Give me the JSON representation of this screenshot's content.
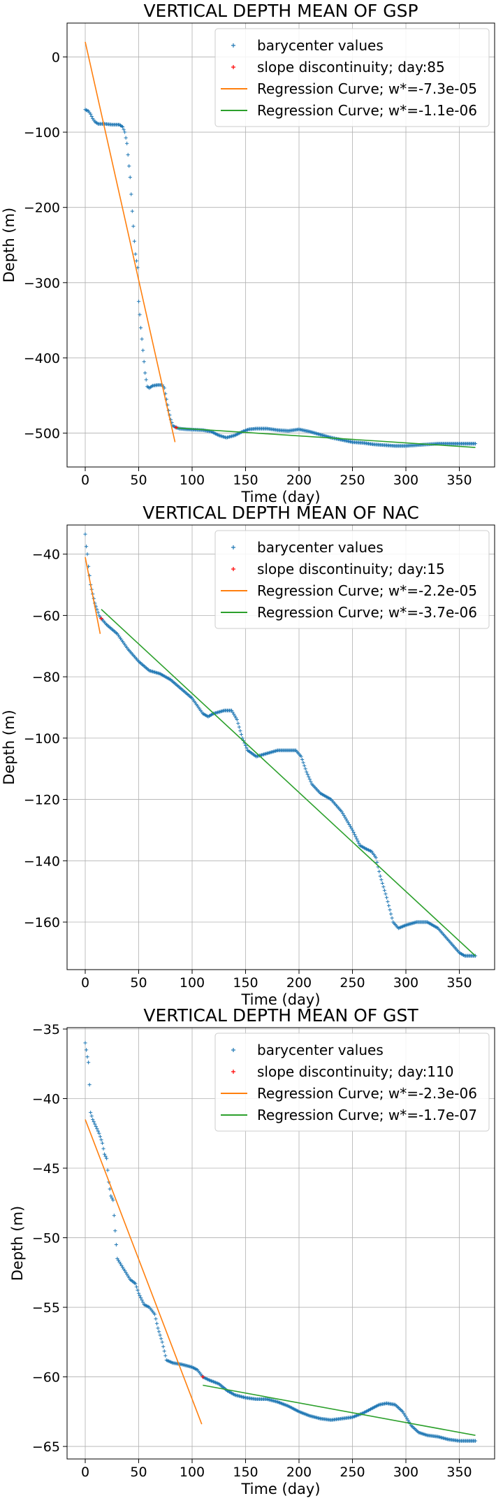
{
  "chart_data": [
    {
      "type": "scatter",
      "title": "VERTICAL DEPTH MEAN OF GSP",
      "xlabel": "Time (day)",
      "ylabel": "Depth (m)",
      "xlim": [
        -17,
        383
      ],
      "ylim": [
        -545,
        45
      ],
      "xticks": [
        0,
        50,
        100,
        150,
        200,
        250,
        300,
        350
      ],
      "yticks": [
        0,
        -100,
        -200,
        -300,
        -400,
        -500
      ],
      "grid": true,
      "legend_position": "top-right",
      "legend": [
        "barycenter values",
        "slope discontinuity; day:85",
        "Regression Curve; w*=-7.3e-05",
        "Regression Curve; w*=-1.1e-06"
      ],
      "colors": {
        "scatter": "#1f77b4",
        "discontinuity": "#ff0000",
        "reg1": "#ff7f0e",
        "reg2": "#2ca02c"
      },
      "discontinuity_day": 85,
      "regression_lines": [
        {
          "x": [
            0,
            84
          ],
          "y": [
            20,
            -512
          ]
        },
        {
          "x": [
            85,
            365
          ],
          "y": [
            -493,
            -519
          ]
        }
      ],
      "profile": [
        [
          0,
          -70
        ],
        [
          3,
          -72
        ],
        [
          5,
          -76
        ],
        [
          7,
          -82
        ],
        [
          9,
          -86
        ],
        [
          12,
          -89
        ],
        [
          18,
          -89
        ],
        [
          25,
          -90
        ],
        [
          32,
          -90
        ],
        [
          35,
          -93
        ],
        [
          37,
          -100
        ],
        [
          39,
          -115
        ],
        [
          40,
          -130
        ],
        [
          42,
          -160
        ],
        [
          44,
          -205
        ],
        [
          46,
          -245
        ],
        [
          47,
          -262
        ],
        [
          49,
          -280
        ],
        [
          50,
          -325
        ],
        [
          52,
          -360
        ],
        [
          54,
          -390
        ],
        [
          56,
          -420
        ],
        [
          58,
          -438
        ],
        [
          60,
          -440
        ],
        [
          63,
          -437
        ],
        [
          68,
          -436
        ],
        [
          72,
          -436
        ],
        [
          74,
          -440
        ],
        [
          76,
          -455
        ],
        [
          78,
          -470
        ],
        [
          80,
          -482
        ],
        [
          82,
          -490
        ],
        [
          84,
          -492
        ],
        [
          88,
          -494
        ],
        [
          95,
          -495
        ],
        [
          110,
          -496
        ],
        [
          118,
          -498
        ],
        [
          125,
          -503
        ],
        [
          132,
          -506
        ],
        [
          140,
          -503
        ],
        [
          147,
          -498
        ],
        [
          153,
          -495
        ],
        [
          160,
          -494
        ],
        [
          170,
          -494
        ],
        [
          180,
          -496
        ],
        [
          190,
          -497
        ],
        [
          200,
          -495
        ],
        [
          210,
          -498
        ],
        [
          220,
          -502
        ],
        [
          230,
          -506
        ],
        [
          240,
          -509
        ],
        [
          250,
          -512
        ],
        [
          260,
          -513
        ],
        [
          270,
          -515
        ],
        [
          280,
          -516
        ],
        [
          290,
          -517
        ],
        [
          300,
          -517
        ],
        [
          310,
          -516
        ],
        [
          320,
          -515
        ],
        [
          330,
          -514
        ],
        [
          340,
          -514
        ],
        [
          350,
          -514
        ],
        [
          365,
          -514
        ]
      ]
    },
    {
      "type": "scatter",
      "title": "VERTICAL DEPTH MEAN OF NAC",
      "xlabel": "Time (day)",
      "ylabel": "Depth (m)",
      "xlim": [
        -17,
        383
      ],
      "ylim": [
        -175.5,
        -30.5
      ],
      "xticks": [
        0,
        50,
        100,
        150,
        200,
        250,
        300,
        350
      ],
      "yticks": [
        -40,
        -60,
        -80,
        -100,
        -120,
        -140,
        -160
      ],
      "grid": true,
      "legend_position": "top-right",
      "legend": [
        "barycenter values",
        "slope discontinuity; day:15",
        "Regression Curve; w*=-2.2e-05",
        "Regression Curve; w*=-3.7e-06"
      ],
      "colors": {
        "scatter": "#1f77b4",
        "discontinuity": "#ff0000",
        "reg1": "#ff7f0e",
        "reg2": "#2ca02c"
      },
      "discontinuity_day": 15,
      "regression_lines": [
        {
          "x": [
            0,
            14
          ],
          "y": [
            -41,
            -66
          ]
        },
        {
          "x": [
            15,
            365
          ],
          "y": [
            -58,
            -171
          ]
        }
      ],
      "profile": [
        [
          0,
          -33.5
        ],
        [
          1,
          -37.5
        ],
        [
          2,
          -40
        ],
        [
          3,
          -44
        ],
        [
          4,
          -47
        ],
        [
          5,
          -50
        ],
        [
          7,
          -53
        ],
        [
          9,
          -56
        ],
        [
          11,
          -58
        ],
        [
          13,
          -60
        ],
        [
          15,
          -61
        ],
        [
          20,
          -63
        ],
        [
          30,
          -66
        ],
        [
          40,
          -71
        ],
        [
          50,
          -75
        ],
        [
          60,
          -78
        ],
        [
          70,
          -79
        ],
        [
          80,
          -81
        ],
        [
          90,
          -84
        ],
        [
          100,
          -87
        ],
        [
          110,
          -92
        ],
        [
          115,
          -93
        ],
        [
          120,
          -92
        ],
        [
          130,
          -91
        ],
        [
          137,
          -91
        ],
        [
          142,
          -94
        ],
        [
          147,
          -100
        ],
        [
          152,
          -104
        ],
        [
          160,
          -106
        ],
        [
          170,
          -105
        ],
        [
          180,
          -104
        ],
        [
          190,
          -104
        ],
        [
          197,
          -104
        ],
        [
          202,
          -106
        ],
        [
          207,
          -111
        ],
        [
          212,
          -115
        ],
        [
          220,
          -118
        ],
        [
          230,
          -120
        ],
        [
          240,
          -124
        ],
        [
          250,
          -130
        ],
        [
          257,
          -135
        ],
        [
          262,
          -136
        ],
        [
          268,
          -137
        ],
        [
          272,
          -139
        ],
        [
          276,
          -145
        ],
        [
          282,
          -152
        ],
        [
          288,
          -160
        ],
        [
          293,
          -162
        ],
        [
          300,
          -161
        ],
        [
          310,
          -160
        ],
        [
          320,
          -160
        ],
        [
          330,
          -162
        ],
        [
          340,
          -166
        ],
        [
          350,
          -170
        ],
        [
          355,
          -171
        ],
        [
          365,
          -171
        ]
      ]
    },
    {
      "type": "scatter",
      "title": "VERTICAL DEPTH MEAN OF GST",
      "xlabel": "Time (day)",
      "ylabel": "Depth (m)",
      "xlim": [
        -17,
        383
      ],
      "ylim": [
        -65.9,
        -34.9
      ],
      "xticks": [
        0,
        50,
        100,
        150,
        200,
        250,
        300,
        350
      ],
      "yticks": [
        -35,
        -40,
        -45,
        -50,
        -55,
        -60,
        -65
      ],
      "grid": true,
      "legend_position": "top-right",
      "legend": [
        "barycenter values",
        "slope discontinuity; day:110",
        "Regression Curve; w*=-2.3e-06",
        "Regression Curve; w*=-1.7e-07"
      ],
      "colors": {
        "scatter": "#1f77b4",
        "discontinuity": "#ff0000",
        "reg1": "#ff7f0e",
        "reg2": "#2ca02c"
      },
      "discontinuity_day": 110,
      "regression_lines": [
        {
          "x": [
            0,
            109
          ],
          "y": [
            -41.5,
            -63.4
          ]
        },
        {
          "x": [
            110,
            365
          ],
          "y": [
            -60.6,
            -64.2
          ]
        }
      ],
      "profile": [
        [
          0,
          -36
        ],
        [
          2,
          -37
        ],
        [
          3,
          -37.4
        ],
        [
          4,
          -39
        ],
        [
          5,
          -41
        ],
        [
          7,
          -41.5
        ],
        [
          10,
          -42
        ],
        [
          13,
          -42.5
        ],
        [
          16,
          -43.2
        ],
        [
          18,
          -44
        ],
        [
          20,
          -44.3
        ],
        [
          22,
          -46
        ],
        [
          24,
          -47
        ],
        [
          26,
          -47.3
        ],
        [
          28,
          -49.5
        ],
        [
          30,
          -51.5
        ],
        [
          34,
          -52
        ],
        [
          38,
          -52.5
        ],
        [
          42,
          -53
        ],
        [
          47,
          -53.3
        ],
        [
          50,
          -54
        ],
        [
          55,
          -54.8
        ],
        [
          60,
          -55
        ],
        [
          65,
          -55.5
        ],
        [
          68,
          -56.5
        ],
        [
          72,
          -57.5
        ],
        [
          76,
          -58.8
        ],
        [
          82,
          -59
        ],
        [
          90,
          -59.1
        ],
        [
          100,
          -59.3
        ],
        [
          105,
          -59.5
        ],
        [
          110,
          -60
        ],
        [
          115,
          -60.2
        ],
        [
          125,
          -60.5
        ],
        [
          133,
          -61
        ],
        [
          140,
          -61.3
        ],
        [
          150,
          -61.5
        ],
        [
          160,
          -61.6
        ],
        [
          170,
          -61.6
        ],
        [
          180,
          -61.8
        ],
        [
          190,
          -62.1
        ],
        [
          200,
          -62.5
        ],
        [
          210,
          -62.8
        ],
        [
          220,
          -63
        ],
        [
          230,
          -63.1
        ],
        [
          240,
          -63
        ],
        [
          250,
          -62.9
        ],
        [
          260,
          -62.6
        ],
        [
          270,
          -62.2
        ],
        [
          275,
          -62
        ],
        [
          282,
          -61.9
        ],
        [
          290,
          -62
        ],
        [
          297,
          -62.5
        ],
        [
          305,
          -63.5
        ],
        [
          312,
          -64
        ],
        [
          320,
          -64.2
        ],
        [
          330,
          -64.3
        ],
        [
          340,
          -64.5
        ],
        [
          350,
          -64.6
        ],
        [
          365,
          -64.6
        ]
      ]
    }
  ]
}
